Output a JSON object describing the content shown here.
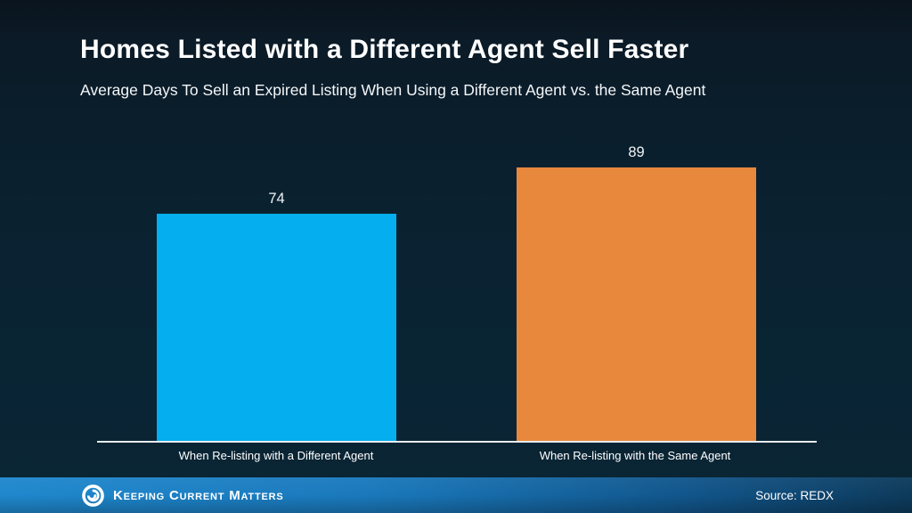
{
  "header": {
    "title": "Homes Listed with a Different Agent Sell Faster",
    "subtitle": "Average Days To Sell an Expired Listing When Using a Different Agent vs. the Same Agent"
  },
  "chart_data": {
    "type": "bar",
    "title": "Homes Listed with a Different Agent Sell Faster",
    "subtitle": "Average Days To Sell an Expired Listing When Using a Different Agent vs. the Same Agent",
    "categories": [
      "When Re-listing with a Different Agent",
      "When Re-listing with the Same Agent"
    ],
    "values": [
      74,
      89
    ],
    "colors": [
      "#04aeef",
      "#e8883d"
    ],
    "xlabel": "",
    "ylabel": "Average days to sell",
    "ylim": [
      0,
      100
    ],
    "grid": false,
    "legend": false,
    "value_labels_shown": true,
    "axis_line_color": "#e7edf2"
  },
  "theme": {
    "background_top": "#0a141d",
    "background_bottom": "#0a2535",
    "text_color": "#ffffff",
    "footer_blue_left": "#1f88cd",
    "footer_blue_right": "#0d3a5b"
  },
  "footer": {
    "brand": "Keeping Current Matters",
    "source": "Source: REDX"
  }
}
